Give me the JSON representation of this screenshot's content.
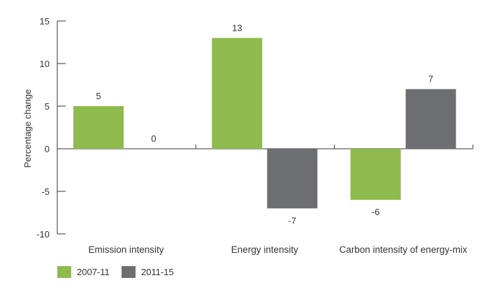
{
  "chart_data": {
    "type": "bar",
    "categories": [
      "Emission intensity",
      "Energy intensity",
      "Carbon intensity of energy-mix"
    ],
    "series": [
      {
        "name": "2007-11",
        "values": [
          5,
          13,
          -6
        ],
        "color": "#8fba4e"
      },
      {
        "name": "2011-15",
        "values": [
          0,
          -7,
          7
        ],
        "color": "#6d6e71"
      }
    ],
    "title": "",
    "xlabel": "",
    "ylabel": "Percentage change",
    "ylim": [
      -10,
      15
    ],
    "yticks": [
      15,
      10,
      5,
      0,
      -5,
      -10
    ],
    "ytick_labels": [
      "15",
      "10",
      "5",
      "0",
      "-5",
      "-10"
    ],
    "grid": false,
    "legend_position": "bottom-left"
  }
}
